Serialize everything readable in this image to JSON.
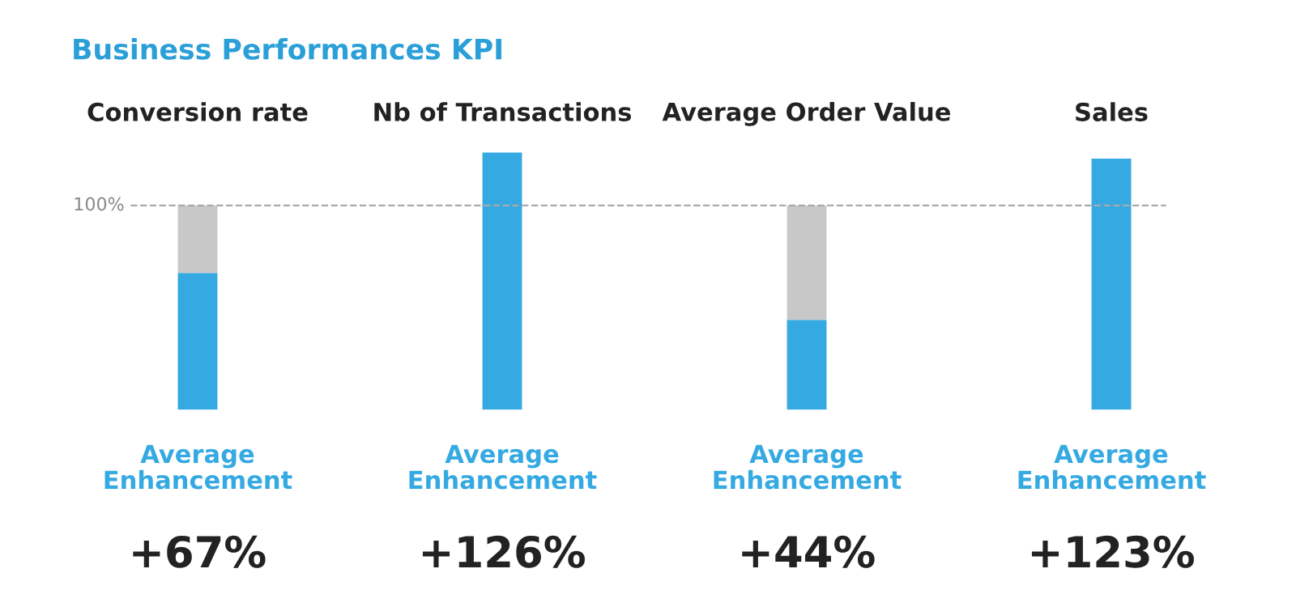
{
  "chart_data": {
    "type": "bar",
    "title": "Business Performances KPI",
    "categories": [
      "Conversion rate",
      "Nb of Transactions",
      "Average Order Value",
      "Sales"
    ],
    "stacked": true,
    "series": [
      {
        "color": "#35a9e1",
        "values": [
          67,
          126,
          44,
          123
        ],
        "value_labels": [
          "+67%",
          "+126%",
          "+44%",
          "+123%"
        ]
      },
      {
        "color": "#c8c8c8",
        "values": [
          33,
          null,
          56,
          null
        ]
      }
    ],
    "tick_labels": "x",
    "ref_lines": [
      {
        "axis": "y",
        "value": 100,
        "label": "100%",
        "color": "#aaaaaa",
        "line_style": "dashed"
      }
    ],
    "annotations": [
      "Average\nEnhancement",
      "Average\nEnhancement",
      "Average\nEnhancement",
      "Average\nEnhancement"
    ],
    "grid": false,
    "legend": false
  }
}
